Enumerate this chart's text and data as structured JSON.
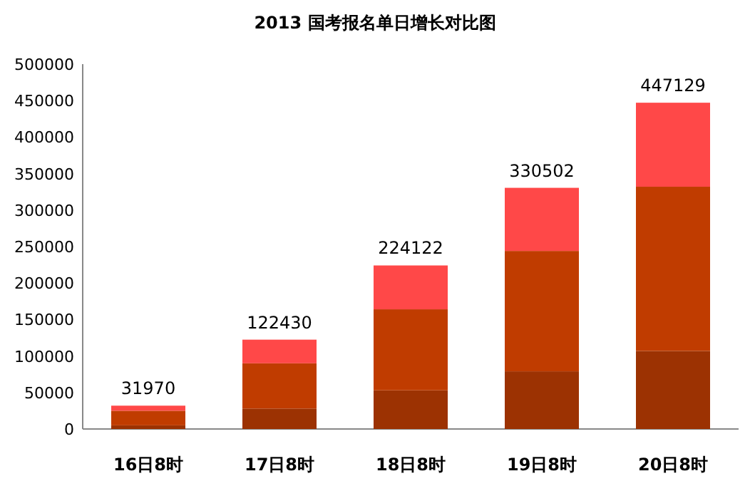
{
  "chart_data": {
    "type": "bar",
    "title": "2013 国考报名单日增长对比图",
    "categories": [
      "16日8时",
      "17日8时",
      "18日8时",
      "19日8时",
      "20日8时"
    ],
    "stacked": true,
    "series": [
      {
        "color": "#9c3202",
        "values": [
          5000,
          28000,
          53000,
          79000,
          107000
        ]
      },
      {
        "color": "#c03c00",
        "values": [
          20000,
          62000,
          111000,
          165000,
          225000
        ]
      },
      {
        "color": "#ff4848",
        "values": [
          6970,
          32430,
          60122,
          86502,
          115129
        ]
      }
    ],
    "totals": [
      "31970",
      "122430",
      "224122",
      "330502",
      "447129"
    ],
    "ylim": [
      0,
      500000
    ],
    "yticks": [
      0,
      50000,
      100000,
      150000,
      200000,
      250000,
      300000,
      350000,
      400000,
      450000,
      500000
    ],
    "grid": false
  }
}
